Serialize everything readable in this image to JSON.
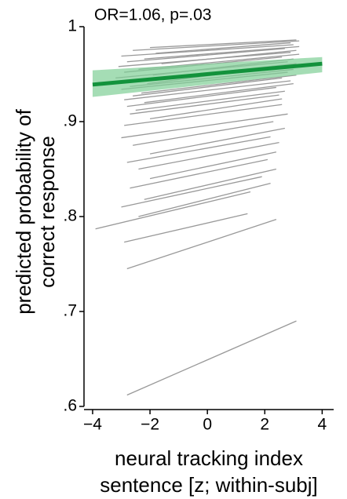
{
  "chart_data": {
    "type": "subject-lines",
    "annotation": "OR=1.06, p=.03",
    "x_label": [
      "neural tracking index",
      "sentence [z; within-subj]"
    ],
    "y_label": [
      "predicted probability of",
      "correct response"
    ],
    "xlim": [
      -4.3,
      4.4
    ],
    "xticks": [
      {
        "value": -4,
        "label": "−4"
      },
      {
        "value": -2,
        "label": "−2"
      },
      0,
      2,
      4
    ],
    "ylim": [
      0.6,
      1.0
    ],
    "yticks": [
      {
        "value": 0.6,
        "label": ".6"
      },
      {
        "value": 0.7,
        "label": ".7"
      },
      {
        "value": 0.8,
        "label": ".8"
      },
      {
        "value": 0.9,
        "label": ".9"
      },
      1
    ],
    "line_color": "#999999",
    "lines": [
      {
        "x": [
          -2.0,
          3.1
        ],
        "values": [
          0.978,
          0.986
        ]
      },
      {
        "x": [
          -2.6,
          3.2
        ],
        "values": [
          0.975,
          0.985
        ]
      },
      {
        "x": [
          -1.8,
          2.9
        ],
        "values": [
          0.972,
          0.983
        ]
      },
      {
        "x": [
          -3.0,
          3.0
        ],
        "values": [
          0.969,
          0.981
        ]
      },
      {
        "x": [
          -2.2,
          3.2
        ],
        "values": [
          0.966,
          0.979
        ]
      },
      {
        "x": [
          -2.8,
          2.7
        ],
        "values": [
          0.963,
          0.977
        ]
      },
      {
        "x": [
          -1.6,
          3.1
        ],
        "values": [
          0.961,
          0.975
        ]
      },
      {
        "x": [
          -3.1,
          2.9
        ],
        "values": [
          0.958,
          0.973
        ]
      },
      {
        "x": [
          -2.4,
          3.2
        ],
        "values": [
          0.955,
          0.971
        ]
      },
      {
        "x": [
          -2.9,
          2.6
        ],
        "values": [
          0.952,
          0.968
        ]
      },
      {
        "x": [
          -1.9,
          3.0
        ],
        "values": [
          0.949,
          0.966
        ]
      },
      {
        "x": [
          -3.2,
          2.8
        ],
        "values": [
          0.946,
          0.963
        ]
      },
      {
        "x": [
          -2.5,
          3.1
        ],
        "values": [
          0.943,
          0.961
        ]
      },
      {
        "x": [
          -2.1,
          2.5
        ],
        "values": [
          0.94,
          0.958
        ]
      },
      {
        "x": [
          -2.7,
          3.0
        ],
        "values": [
          0.937,
          0.955
        ]
      },
      {
        "x": [
          -3.0,
          2.8
        ],
        "values": [
          0.934,
          0.952
        ]
      },
      {
        "x": [
          -2.3,
          3.1
        ],
        "values": [
          0.93,
          0.949
        ]
      },
      {
        "x": [
          -2.6,
          2.6
        ],
        "values": [
          0.927,
          0.946
        ]
      },
      {
        "x": [
          -2.9,
          2.9
        ],
        "values": [
          0.923,
          0.943
        ]
      },
      {
        "x": [
          -2.2,
          3.0
        ],
        "values": [
          0.92,
          0.94
        ]
      },
      {
        "x": [
          -2.8,
          2.4
        ],
        "values": [
          0.916,
          0.936
        ]
      },
      {
        "x": [
          -2.5,
          2.7
        ],
        "values": [
          0.912,
          0.932
        ]
      },
      {
        "x": [
          -2.7,
          2.5
        ],
        "values": [
          0.908,
          0.928
        ]
      },
      {
        "x": [
          -2.0,
          2.6
        ],
        "values": [
          0.903,
          0.924
        ]
      },
      {
        "x": [
          -2.9,
          2.6
        ],
        "values": [
          0.896,
          0.918
        ]
      },
      {
        "x": [
          -3.0,
          2.8
        ],
        "values": [
          0.883,
          0.908
        ]
      },
      {
        "x": [
          -2.6,
          2.3
        ],
        "values": [
          0.875,
          0.9
        ]
      },
      {
        "x": [
          -2.0,
          2.7
        ],
        "values": [
          0.866,
          0.893
        ]
      },
      {
        "x": [
          -2.8,
          2.2
        ],
        "values": [
          0.857,
          0.884
        ]
      },
      {
        "x": [
          -2.4,
          2.5
        ],
        "values": [
          0.85,
          0.878
        ]
      },
      {
        "x": [
          -2.0,
          2.4
        ],
        "values": [
          0.84,
          0.868
        ]
      },
      {
        "x": [
          -2.7,
          2.1
        ],
        "values": [
          0.83,
          0.86
        ]
      },
      {
        "x": [
          -2.2,
          2.4
        ],
        "values": [
          0.818,
          0.85
        ]
      },
      {
        "x": [
          -3.0,
          1.9
        ],
        "values": [
          0.81,
          0.842
        ]
      },
      {
        "x": [
          -2.4,
          2.2
        ],
        "values": [
          0.8,
          0.835
        ]
      },
      {
        "x": [
          -3.9,
          1.5
        ],
        "values": [
          0.787,
          0.826
        ]
      },
      {
        "x": [
          -2.9,
          1.4
        ],
        "values": [
          0.773,
          0.803
        ]
      },
      {
        "x": [
          -2.8,
          2.4
        ],
        "values": [
          0.745,
          0.797
        ]
      },
      {
        "x": [
          -2.8,
          3.1
        ],
        "values": [
          0.612,
          0.69
        ]
      }
    ],
    "mean": {
      "color": "#13923c",
      "band_color": "#7fcf96",
      "x": [
        -4,
        4
      ],
      "values": [
        0.939,
        0.961
      ],
      "lower": [
        0.926,
        0.952
      ],
      "upper": [
        0.954,
        0.968
      ]
    }
  }
}
